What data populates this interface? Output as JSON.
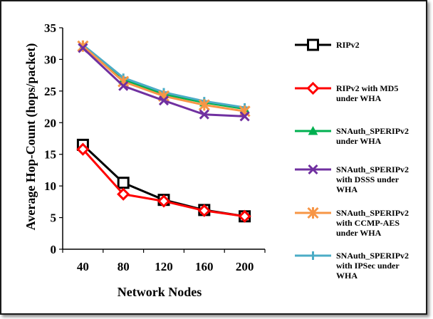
{
  "chart_data": {
    "type": "line",
    "x": [
      40,
      80,
      120,
      160,
      200
    ],
    "xlabel": "Network Nodes",
    "ylabel": "Average Hop-Count (hops/packet)",
    "ylim": [
      0,
      35
    ],
    "yticks": [
      0,
      5,
      10,
      15,
      20,
      25,
      30,
      35
    ],
    "grid": false,
    "legend_position": "right",
    "series": [
      {
        "name": "RIPv2",
        "legend_lines": [
          "RIPv2"
        ],
        "color": "#000000",
        "marker": "square",
        "values": [
          16.5,
          10.5,
          7.8,
          6.2,
          5.2
        ]
      },
      {
        "name": "RIPv2 with MD5 under WHA",
        "legend_lines": [
          "RIPv2 with MD5",
          "under WHA"
        ],
        "color": "#ff0000",
        "marker": "diamond",
        "values": [
          15.8,
          8.7,
          7.6,
          6.1,
          5.2
        ]
      },
      {
        "name": "SNAuth_SPERIPv2 under WHA",
        "legend_lines": [
          "SNAuth_SPERIPv2",
          "under WHA"
        ],
        "color": "#00b050",
        "marker": "triangle",
        "values": [
          32.0,
          26.8,
          24.5,
          23.2,
          22.2
        ]
      },
      {
        "name": "SNAuth_SPERIPv2 with DSSS under WHA",
        "legend_lines": [
          "SNAuth_SPERIPv2",
          "with DSSS under",
          "WHA"
        ],
        "color": "#7030a0",
        "marker": "x",
        "values": [
          31.8,
          25.8,
          23.5,
          21.3,
          21.0
        ]
      },
      {
        "name": "SNAuth_SPERIPv2 with CCMP-AES under WHA",
        "legend_lines": [
          "SNAuth_SPERIPv2",
          "with CCMP-AES",
          "under WHA"
        ],
        "color": "#f79646",
        "marker": "star",
        "values": [
          32.1,
          26.5,
          24.2,
          22.8,
          21.8
        ]
      },
      {
        "name": "SNAuth_SPERIPv2 with IPSec under WHA",
        "legend_lines": [
          "SNAuth_SPERIPv2",
          "with IPSec under",
          "WHA"
        ],
        "color": "#4bacc6",
        "marker": "plus",
        "values": [
          32.3,
          27.1,
          24.8,
          23.4,
          22.4
        ]
      }
    ]
  }
}
